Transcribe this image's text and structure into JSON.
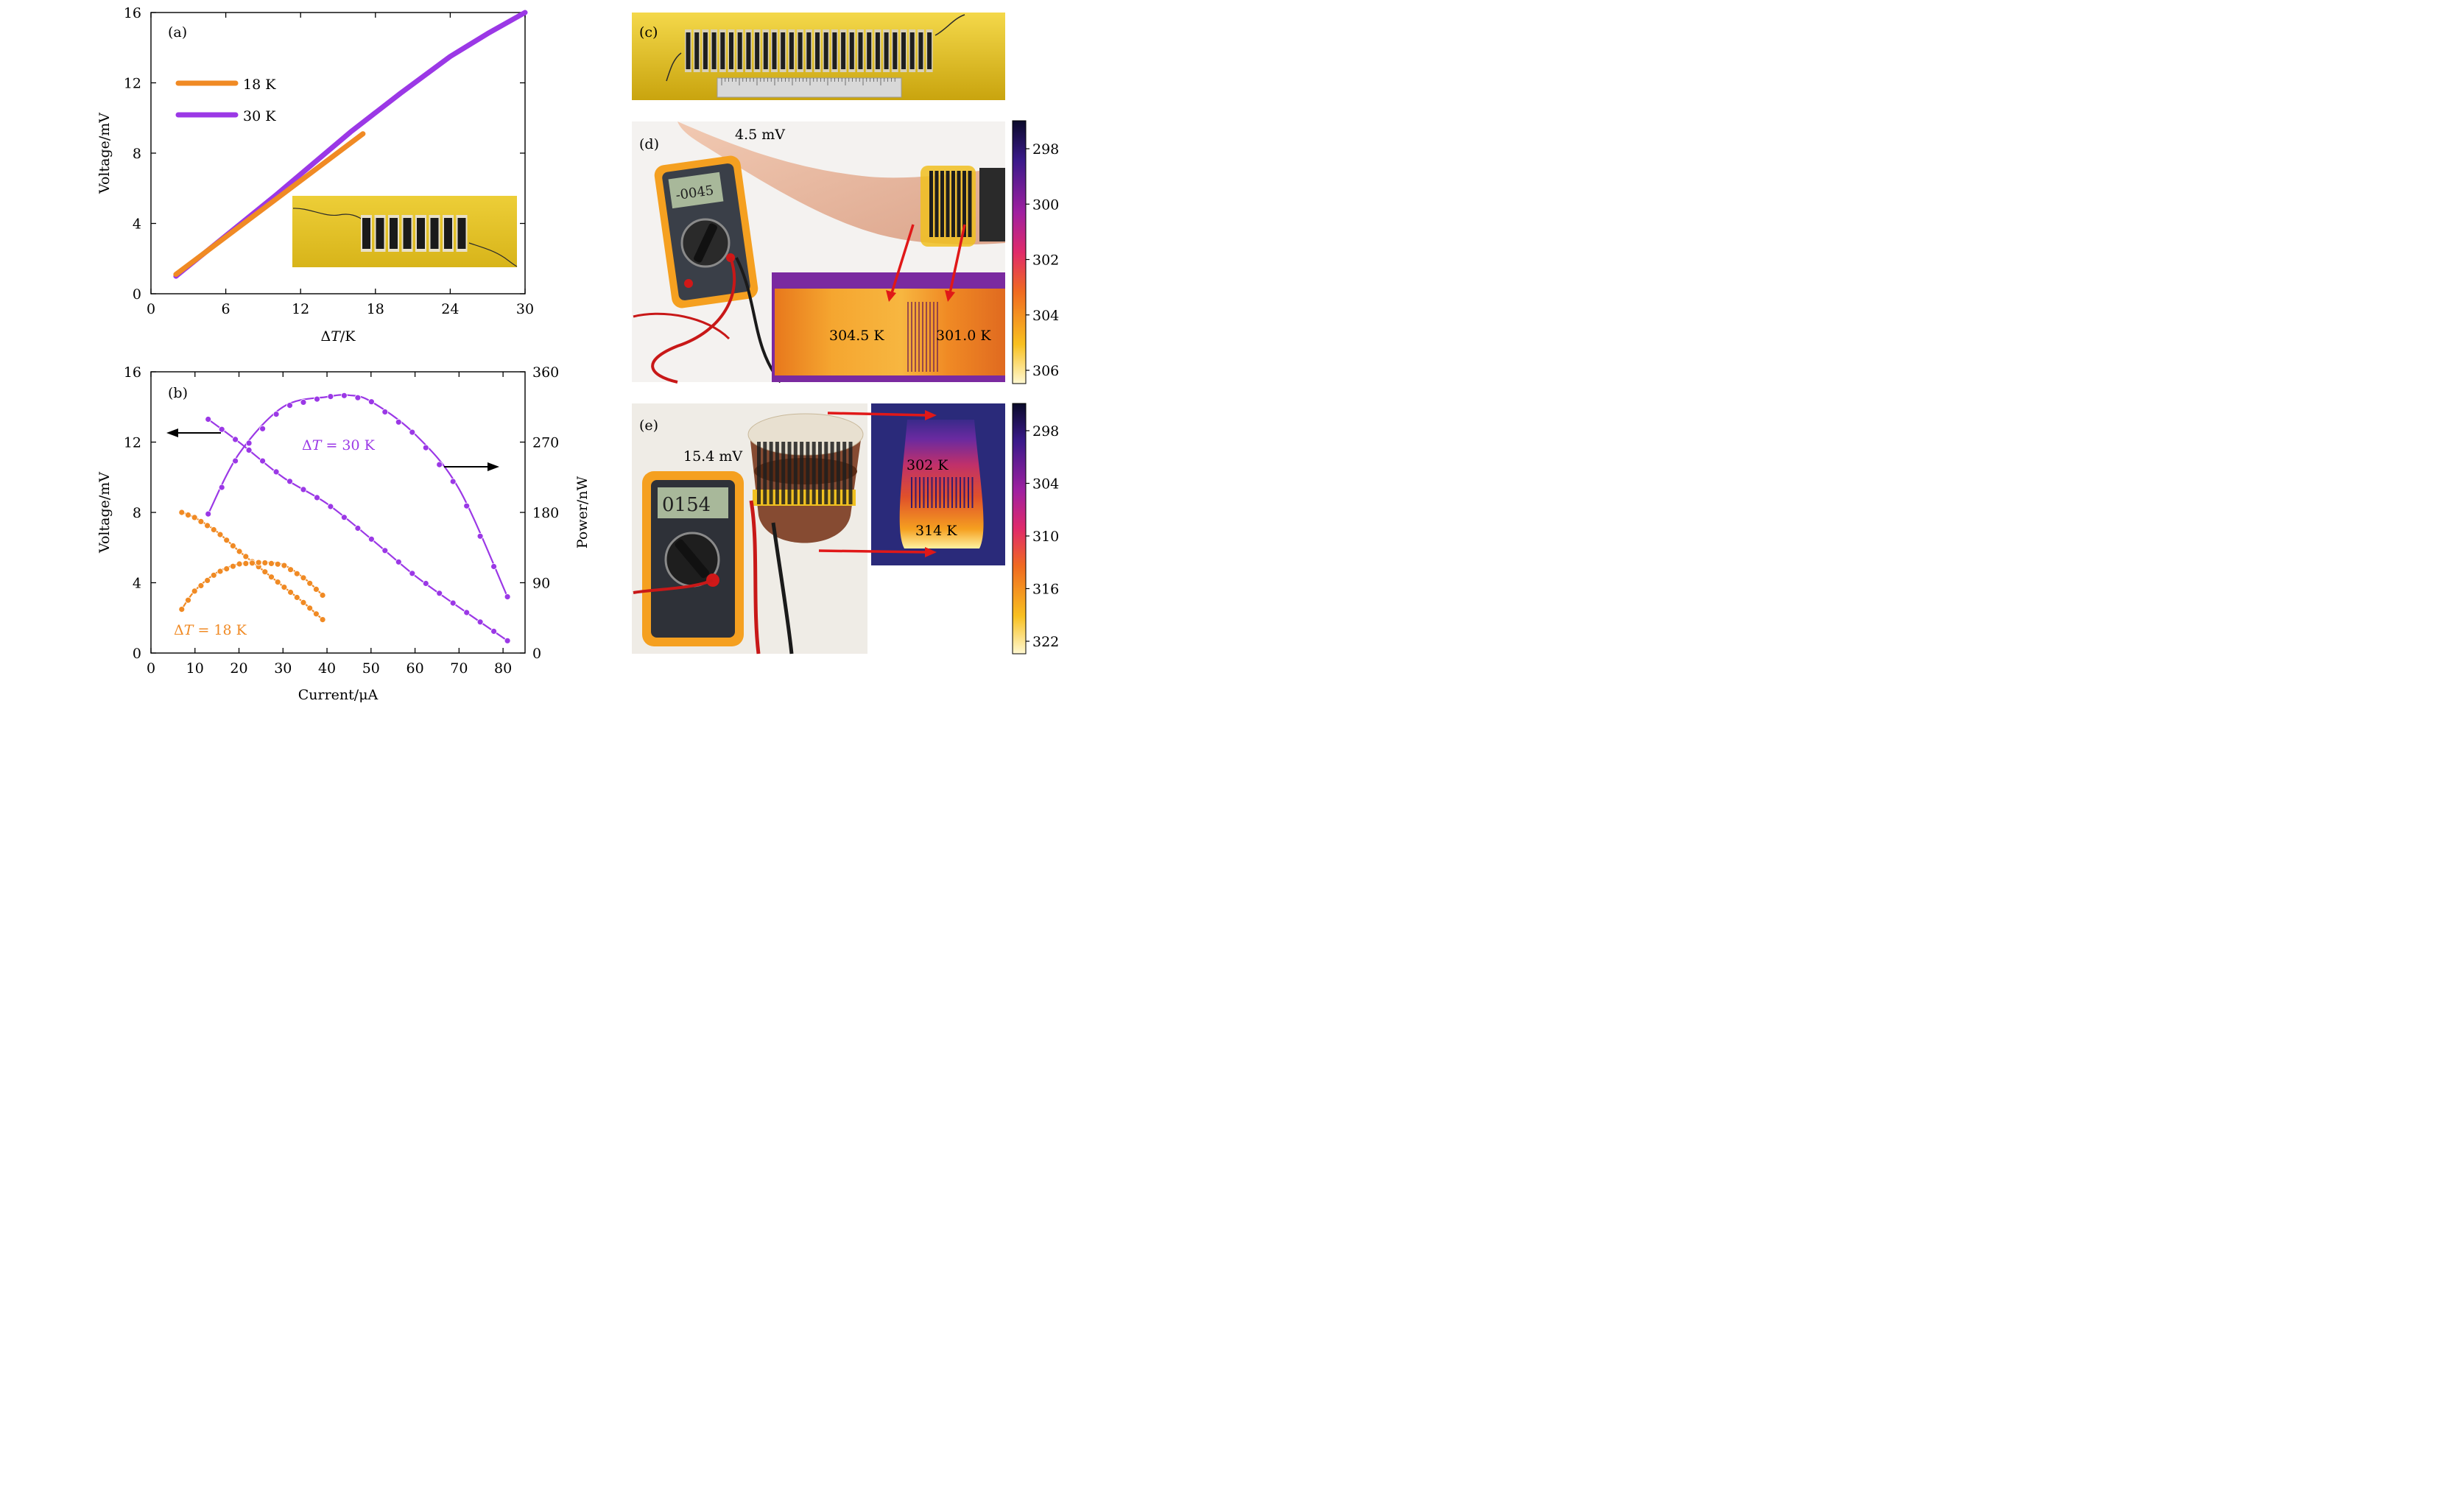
{
  "panel_a": {
    "label": "(a)",
    "xlabel_delta": "Δ",
    "xlabel_var": "T",
    "xlabel_unit": "/K",
    "ylabel": "Voltage/mV",
    "inset": "photo of 8-leg thermoelectric device on yellow film"
  },
  "panel_b": {
    "label": "(b)",
    "xlabel": "Current/μA",
    "ylabel_left": "Voltage/mV",
    "ylabel_right": "Power/nW",
    "annot_30_delta": "Δ",
    "annot_30_var": "T",
    "annot_30_val": " = 30 K",
    "annot_18_delta": "Δ",
    "annot_18_var": "T",
    "annot_18_val": " = 18 K"
  },
  "panel_c": {
    "label": "(c)"
  },
  "panel_d": {
    "label": "(d)",
    "voltage": "4.5 mV",
    "meter_reading": "-0045",
    "temp_left": "304.5 K",
    "temp_right": "301.0 K",
    "colorbar_ticks": [
      "298",
      "300",
      "302",
      "304",
      "306"
    ]
  },
  "panel_e": {
    "label": "(e)",
    "voltage": "15.4 mV",
    "meter_reading": "0154",
    "temp_top": "302 K",
    "temp_bottom": "314 K",
    "colorbar_ticks": [
      "298",
      "304",
      "310",
      "316",
      "322"
    ]
  },
  "colors": {
    "orange": "#f08a24",
    "purple": "#9b38e6",
    "film": "#e8c51f"
  },
  "chart_data": [
    {
      "type": "line",
      "panel": "a",
      "x_ticks": [
        "0",
        "6",
        "12",
        "18",
        "24",
        "30"
      ],
      "y_ticks": [
        "0",
        "4",
        "8",
        "12",
        "16"
      ],
      "xlim": [
        0,
        30
      ],
      "ylim": [
        0,
        16
      ],
      "legend_position": "upper-left",
      "series": [
        {
          "name": "18 K",
          "color": "#f08a24",
          "x": [
            2,
            17
          ],
          "y": [
            1.1,
            9.1
          ]
        },
        {
          "name": "30 K",
          "color": "#9b38e6",
          "x": [
            2,
            10,
            16,
            20,
            24,
            27,
            30
          ],
          "y": [
            1.0,
            5.6,
            9.2,
            11.4,
            13.5,
            14.8,
            16.0
          ]
        }
      ]
    },
    {
      "type": "scatter",
      "panel": "b",
      "x_ticks": [
        "0",
        "10",
        "20",
        "30",
        "40",
        "50",
        "60",
        "70",
        "80"
      ],
      "y_ticks_left": [
        "0",
        "4",
        "8",
        "12",
        "16"
      ],
      "y_ticks_right": [
        "0",
        "90",
        "180",
        "270",
        "360"
      ],
      "xlim": [
        0,
        85
      ],
      "ylim_left": [
        0,
        16
      ],
      "ylim_right": [
        0,
        360
      ],
      "series": [
        {
          "name": "voltage ΔT = 30 K",
          "axis": "left",
          "color": "#9b38e6",
          "x": [
            13,
            20,
            30,
            40,
            50,
            60,
            70,
            81
          ],
          "y": [
            13.3,
            12.0,
            10.0,
            8.5,
            6.5,
            4.4,
            2.6,
            0.7
          ]
        },
        {
          "name": "power ΔT = 30 K",
          "axis": "right",
          "color": "#9b38e6",
          "x": [
            13,
            20,
            30,
            40,
            45,
            50,
            60,
            70,
            81
          ],
          "y": [
            178,
            255,
            315,
            328,
            330,
            322,
            280,
            210,
            72
          ]
        },
        {
          "name": "voltage ΔT = 18 K",
          "axis": "left",
          "color": "#f08a24",
          "x": [
            7,
            10,
            15,
            20,
            25,
            30,
            35,
            39
          ],
          "y": [
            8.0,
            7.7,
            6.9,
            5.8,
            4.8,
            3.8,
            2.8,
            1.9
          ]
        },
        {
          "name": "power ΔT = 18 K",
          "axis": "right",
          "color": "#f08a24",
          "x": [
            7,
            10,
            15,
            20,
            25,
            30,
            35,
            39
          ],
          "y": [
            56,
            80,
            103,
            114,
            116,
            113,
            95,
            74
          ]
        }
      ]
    }
  ]
}
